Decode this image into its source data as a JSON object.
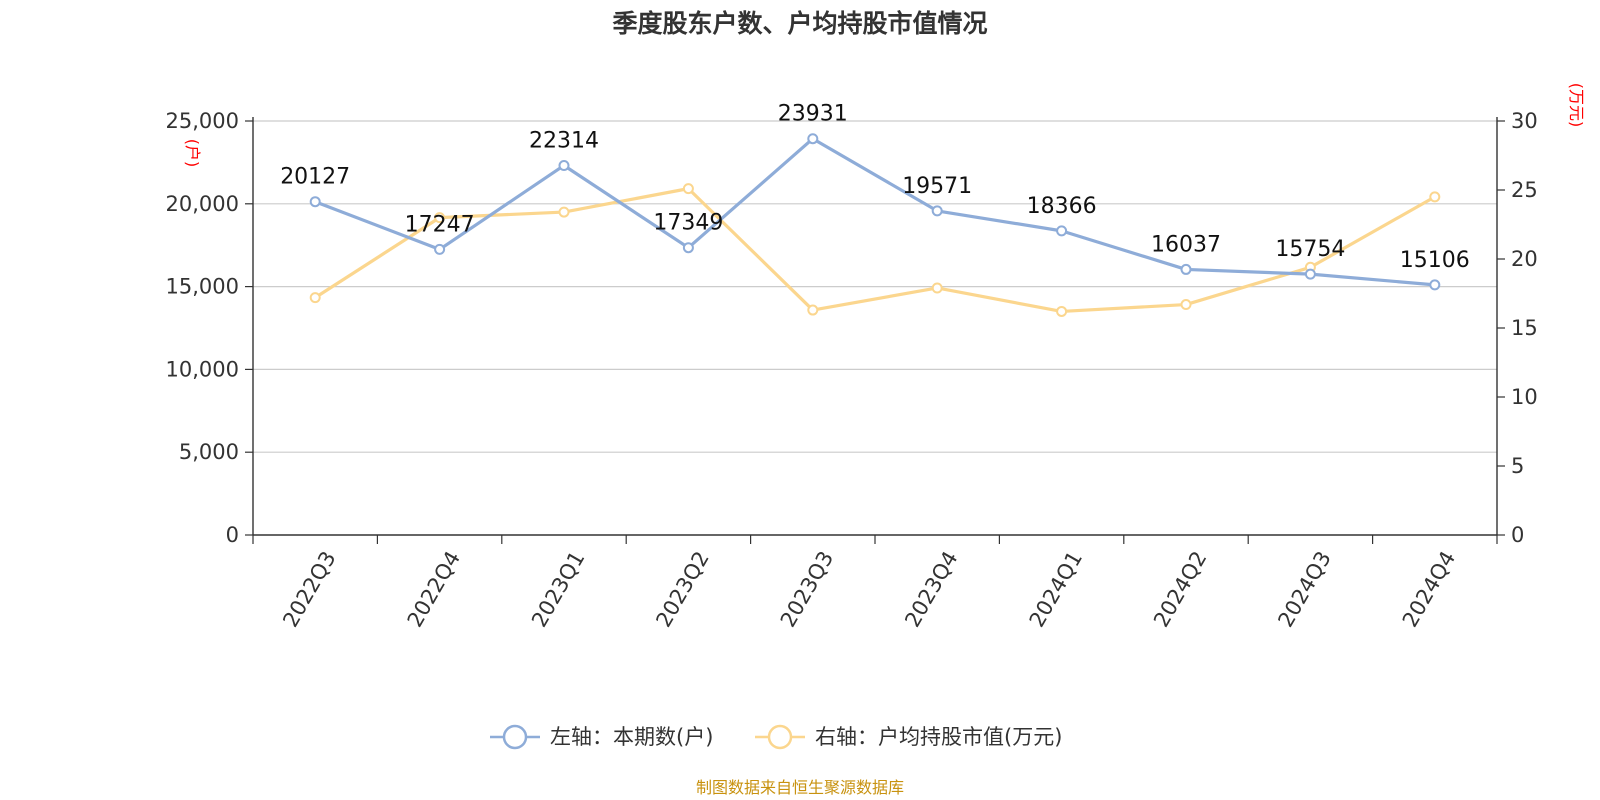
{
  "chart_data": {
    "type": "line",
    "title": "季度股东户数、户均持股市值情况",
    "categories": [
      "2022Q3",
      "2022Q4",
      "2023Q1",
      "2023Q2",
      "2023Q3",
      "2023Q4",
      "2024Q1",
      "2024Q2",
      "2024Q3",
      "2024Q4"
    ],
    "y_left": {
      "unit": "(户)",
      "ylim": [
        0,
        25000
      ],
      "ticks": [
        "0",
        "5,000",
        "10,000",
        "15,000",
        "20,000",
        "25,000"
      ]
    },
    "y_right": {
      "unit": "(万元)",
      "ylim": [
        0,
        30
      ],
      "ticks": [
        "0",
        "5",
        "10",
        "15",
        "20",
        "25",
        "30"
      ]
    },
    "series": [
      {
        "name": "左轴：本期数(户)",
        "axis": "left",
        "color": "#8eacd8",
        "values": [
          20127,
          17247,
          22314,
          17349,
          23931,
          19571,
          18366,
          16037,
          15754,
          15106
        ],
        "labels": [
          "20127",
          "17247",
          "22314",
          "17349",
          "23931",
          "19571",
          "18366",
          "16037",
          "15754",
          "15106"
        ]
      },
      {
        "name": "右轴：户均持股市值(万元)",
        "axis": "right",
        "color": "#fbd68e",
        "values": [
          17.2,
          23.0,
          23.4,
          25.1,
          16.3,
          17.9,
          16.2,
          16.7,
          19.4,
          24.5
        ]
      }
    ],
    "grid": true,
    "legend_position": "bottom-center"
  },
  "source": "制图数据来自恒生聚源数据库"
}
